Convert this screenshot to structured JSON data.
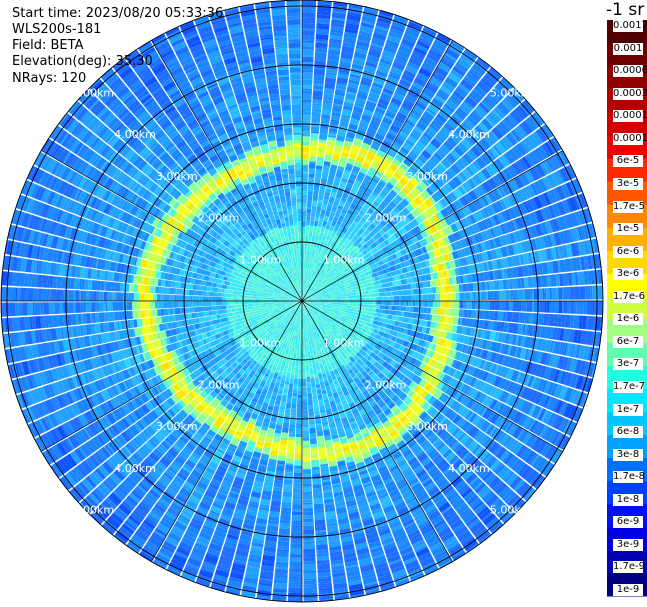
{
  "info": {
    "start_time": "Start time: 2023/08/20 05:33:36",
    "instrument": "WLS200s-181",
    "field": "Field: BETA",
    "elevation": "Elevation(deg): 35.30",
    "nrays": "NRays: 120"
  },
  "chart_data": {
    "type": "polar-heatmap",
    "field": "BETA",
    "nrays": 120,
    "elevation_deg": 35.3,
    "range_rings_km": [
      1.0,
      2.0,
      3.0,
      4.0,
      5.0
    ],
    "ring_labels": [
      "1.00km",
      "2.00km",
      "3.00km",
      "4.00km",
      "5.00km"
    ],
    "max_range_km": 5.1,
    "aerosol_ring_km": 2.55,
    "grid": true,
    "colorbar": {
      "title": "-1 sr",
      "ticks": [
        "0.0017",
        "0.001",
        "0.0006",
        "0.0003",
        "0.00017",
        "0.0001",
        "6e-5",
        "3e-5",
        "1.7e-5",
        "1e-5",
        "6e-6",
        "3e-6",
        "1.7e-6",
        "1e-6",
        "6e-7",
        "3e-7",
        "1.7e-7",
        "1e-7",
        "6e-8",
        "3e-8",
        "1.7e-8",
        "1e-8",
        "6e-9",
        "3e-9",
        "1.7e-9",
        "1e-9"
      ],
      "colors": [
        "#000080",
        "#0000b0",
        "#0000e0",
        "#0010ff",
        "#0040ff",
        "#0070ff",
        "#00a0ff",
        "#00c8ff",
        "#00e8ff",
        "#20ffe0",
        "#60ffb0",
        "#a0ff80",
        "#d0ff40",
        "#ffff00",
        "#ffd800",
        "#ffb000",
        "#ff8800",
        "#ff5800",
        "#ff2800",
        "#f00000",
        "#d00000",
        "#b00000",
        "#900000",
        "#700000",
        "#500000"
      ]
    }
  }
}
